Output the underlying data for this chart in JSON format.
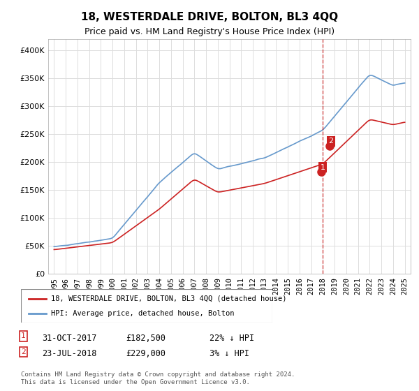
{
  "title": "18, WESTERDALE DRIVE, BOLTON, BL3 4QQ",
  "subtitle": "Price paid vs. HM Land Registry's House Price Index (HPI)",
  "legend_line1": "18, WESTERDALE DRIVE, BOLTON, BL3 4QQ (detached house)",
  "legend_line2": "HPI: Average price, detached house, Bolton",
  "table_rows": [
    {
      "num": "1",
      "date": "31-OCT-2017",
      "price": "£182,500",
      "hpi": "22% ↓ HPI"
    },
    {
      "num": "2",
      "date": "23-JUL-2018",
      "price": "£229,000",
      "hpi": "3% ↓ HPI"
    }
  ],
  "footer": "Contains HM Land Registry data © Crown copyright and database right 2024.\nThis data is licensed under the Open Government Licence v3.0.",
  "hpi_color": "#6699cc",
  "price_color": "#cc2222",
  "dashed_color": "#cc2222",
  "marker1_color": "#cc2222",
  "marker2_color": "#cc2222",
  "ylim": [
    0,
    420000
  ],
  "yticks": [
    0,
    50000,
    100000,
    150000,
    200000,
    250000,
    300000,
    350000,
    400000
  ],
  "xlim_start": 1994.5,
  "xlim_end": 2025.5,
  "transaction1_x": 2017.833,
  "transaction1_y": 182500,
  "transaction2_x": 2018.55,
  "transaction2_y": 229000,
  "vline_x": 2018.0
}
